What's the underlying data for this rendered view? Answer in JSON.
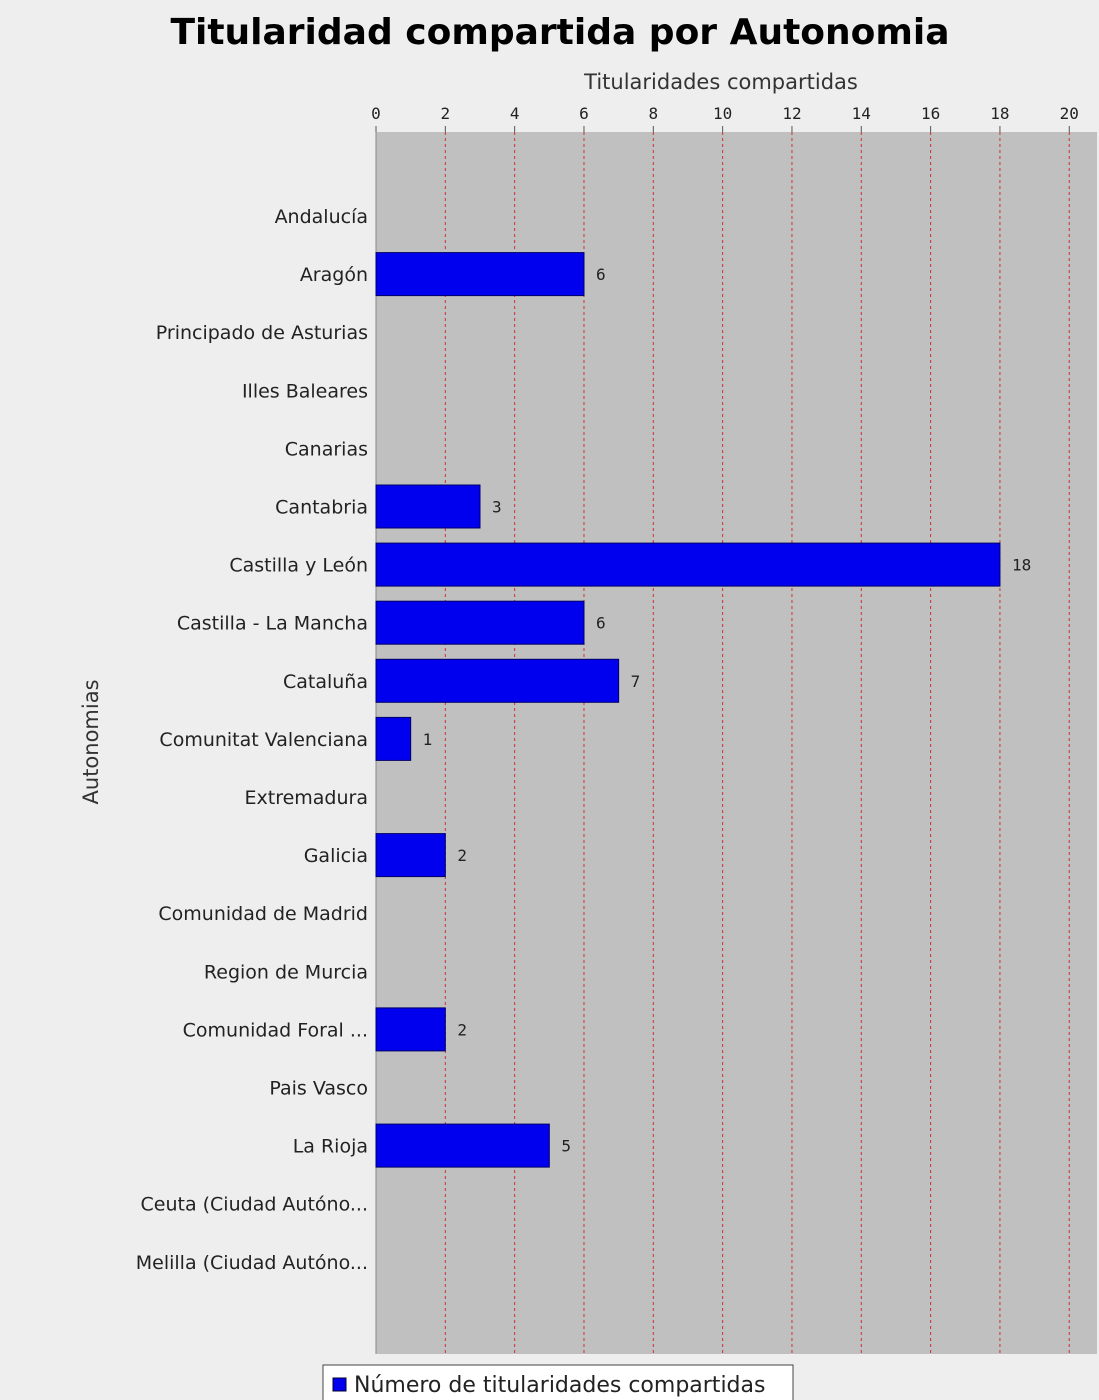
{
  "chart_data": {
    "type": "bar",
    "orientation": "horizontal",
    "title": "Titularidad compartida por Autonomia",
    "xlabel": "Titularidades compartidas",
    "ylabel": "Autonomias",
    "xlim": [
      0,
      20.8
    ],
    "x_ticks": [
      0,
      2,
      4,
      6,
      8,
      10,
      12,
      14,
      16,
      18,
      20
    ],
    "x_axis_position": "top",
    "grid": true,
    "legend_position": "bottom",
    "categories": [
      "Andalucía",
      "Aragón",
      "Principado de Asturias",
      "Illes Baleares",
      "Canarias",
      "Cantabria",
      "Castilla y León",
      "Castilla - La Mancha",
      "Cataluña",
      "Comunitat Valenciana",
      "Extremadura",
      "Galicia",
      "Comunidad de Madrid",
      "Region de Murcia",
      "Comunidad Foral ...",
      "Pais Vasco",
      "La Rioja",
      "Ceuta (Ciudad Autóno...",
      "Melilla (Ciudad Autóno..."
    ],
    "series": [
      {
        "name": "Número de titularidades compartidas",
        "values": [
          null,
          6,
          null,
          null,
          null,
          3,
          18,
          6,
          7,
          1,
          null,
          2,
          null,
          null,
          2,
          null,
          5,
          null,
          null
        ]
      }
    ]
  },
  "colors": {
    "background": "#eeeeee",
    "plot_background": "#c0c0c0",
    "bar": "#0000ee",
    "gridline": "#cc3333"
  }
}
